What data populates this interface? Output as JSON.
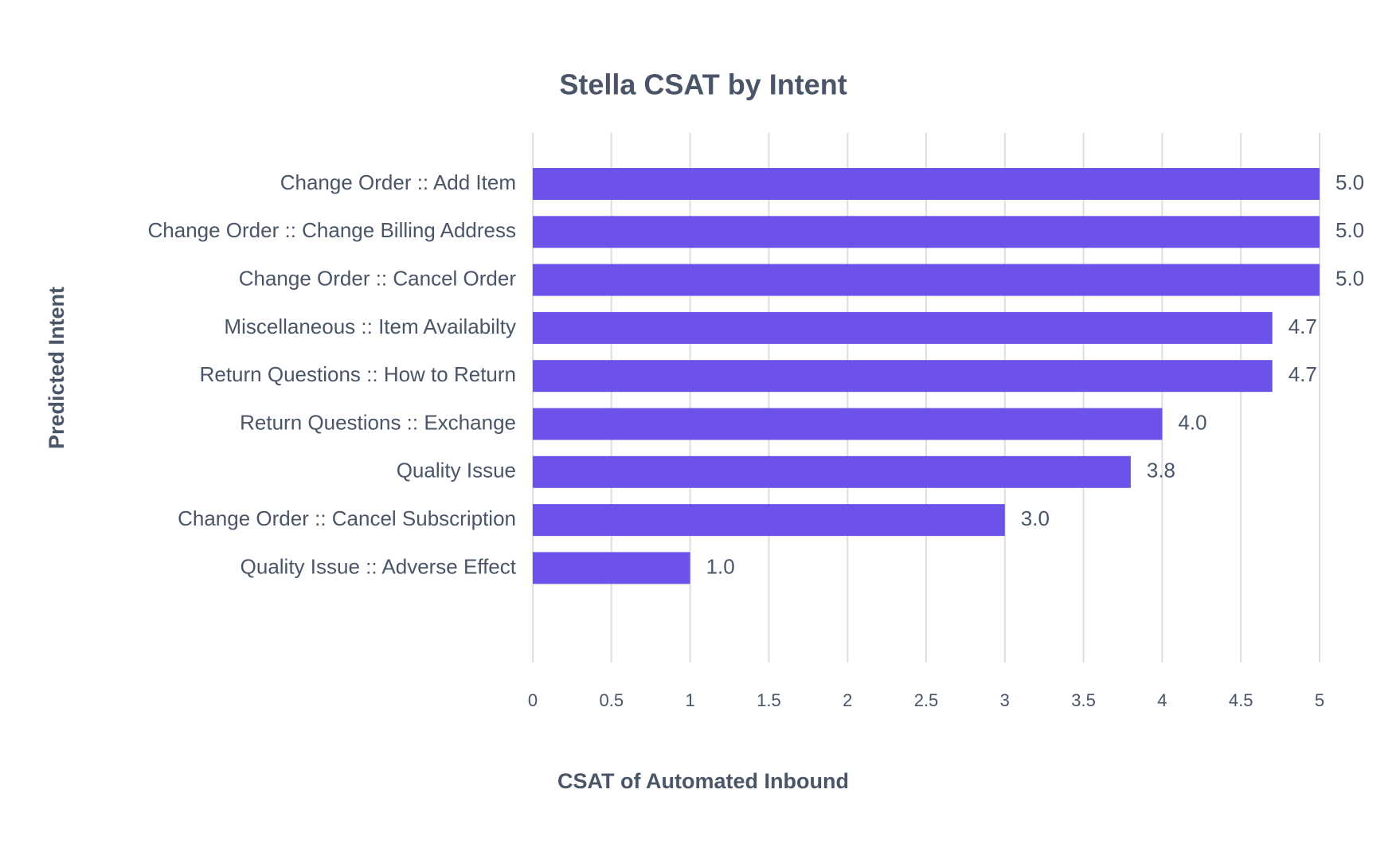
{
  "chart_data": {
    "type": "bar",
    "orientation": "horizontal",
    "title": "Stella CSAT by Intent",
    "xlabel": "CSAT of Automated Inbound",
    "ylabel": "Predicted Intent",
    "categories": [
      "Change Order :: Add Item",
      "Change Order :: Change Billing Address",
      "Change Order :: Cancel Order",
      "Miscellaneous :: Item Availabilty",
      "Return Questions :: How to Return",
      "Return Questions :: Exchange",
      "Quality Issue",
      "Change Order :: Cancel Subscription",
      "Quality Issue :: Adverse Effect"
    ],
    "values": [
      5.0,
      5.0,
      5.0,
      4.7,
      4.7,
      4.0,
      3.8,
      3.0,
      1.0
    ],
    "value_labels": [
      "5.0",
      "5.0",
      "5.0",
      "4.7",
      "4.7",
      "4.0",
      "3.8",
      "3.0",
      "1.0"
    ],
    "color": "#6c52e8",
    "xlim": [
      0,
      5
    ],
    "xticks": [
      0,
      0.5,
      1,
      1.5,
      2,
      2.5,
      3,
      3.5,
      4,
      4.5,
      5
    ],
    "grid": true
  }
}
